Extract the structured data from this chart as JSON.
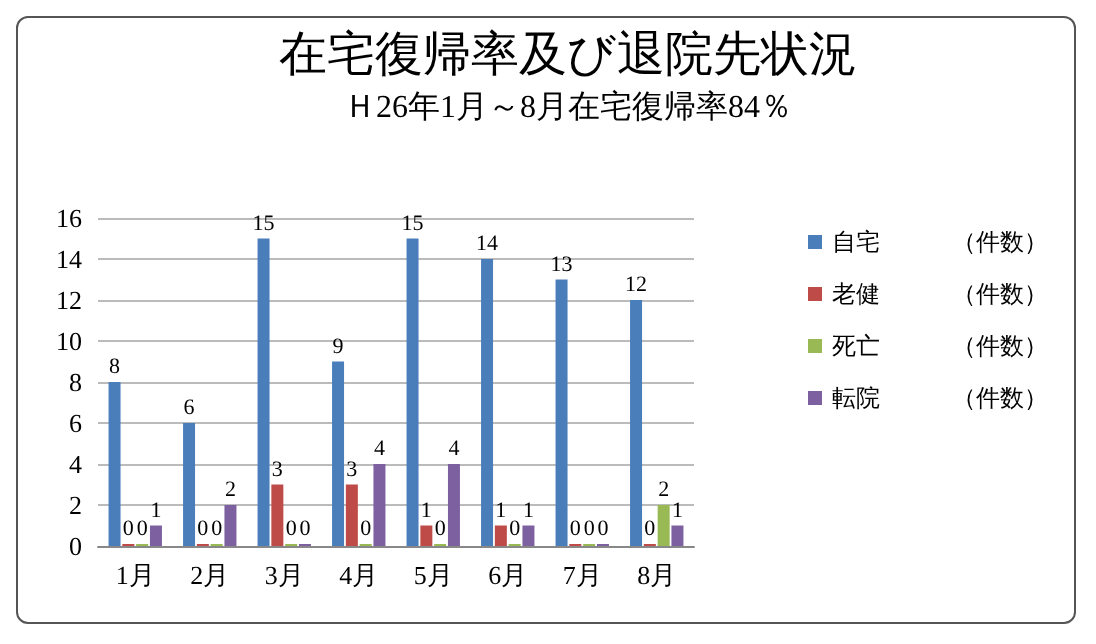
{
  "chart_data": {
    "type": "bar",
    "title": "在宅復帰率及び退院先状況",
    "subtitle": "Ｈ26年1月～8月在宅復帰率84％",
    "categories": [
      "1月",
      "2月",
      "3月",
      "4月",
      "5月",
      "6月",
      "7月",
      "8月"
    ],
    "series": [
      {
        "name": "自宅　　　（件数）",
        "color": "#4a7ebb",
        "values": [
          8,
          6,
          15,
          9,
          15,
          14,
          13,
          12
        ]
      },
      {
        "name": "老健　　　（件数）",
        "color": "#be4b48",
        "values": [
          0,
          0,
          3,
          3,
          1,
          1,
          0,
          0
        ]
      },
      {
        "name": "死亡　　　（件数）",
        "color": "#98b954",
        "values": [
          0,
          0,
          0,
          0,
          0,
          0,
          0,
          2
        ]
      },
      {
        "name": "転院　　　（件数）",
        "color": "#7d60a0",
        "values": [
          1,
          2,
          0,
          4,
          4,
          1,
          0,
          1
        ]
      }
    ],
    "ylim": [
      0,
      16
    ],
    "yticks": [
      0,
      2,
      4,
      6,
      8,
      10,
      12,
      14,
      16
    ],
    "grid": "y",
    "legend": "right",
    "data_labels": true
  }
}
